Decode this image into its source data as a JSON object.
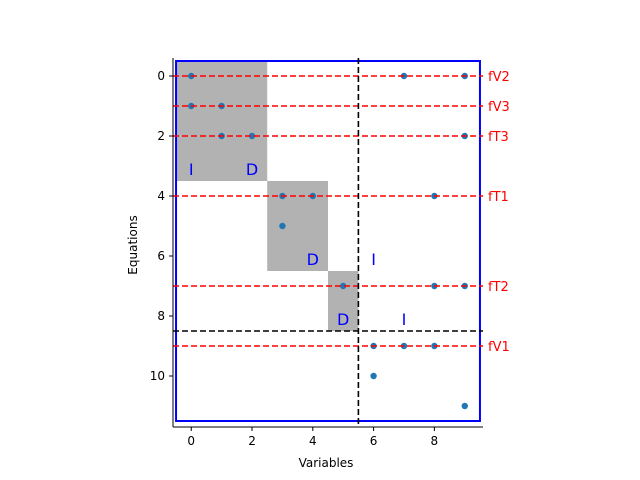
{
  "chart_data": {
    "type": "scatter",
    "xlabel": "Variables",
    "ylabel": "Equations",
    "xlim": [
      -0.6,
      9.6
    ],
    "ylim": [
      11.7,
      -0.6
    ],
    "x_ticks": [
      0,
      2,
      4,
      6,
      8
    ],
    "y_ticks": [
      0,
      2,
      4,
      6,
      8,
      10
    ],
    "grid": false,
    "marker_color": "#1f77b4",
    "points": [
      {
        "x": 0,
        "y": 0
      },
      {
        "x": 7,
        "y": 0
      },
      {
        "x": 9,
        "y": 0
      },
      {
        "x": 0,
        "y": 1
      },
      {
        "x": 1,
        "y": 1
      },
      {
        "x": 1,
        "y": 2
      },
      {
        "x": 2,
        "y": 2
      },
      {
        "x": 9,
        "y": 2
      },
      {
        "x": 3,
        "y": 4
      },
      {
        "x": 4,
        "y": 4
      },
      {
        "x": 8,
        "y": 4
      },
      {
        "x": 3,
        "y": 5
      },
      {
        "x": 5,
        "y": 7
      },
      {
        "x": 8,
        "y": 7
      },
      {
        "x": 9,
        "y": 7
      },
      {
        "x": 6,
        "y": 9
      },
      {
        "x": 7,
        "y": 9
      },
      {
        "x": 8,
        "y": 9
      },
      {
        "x": 6,
        "y": 10
      },
      {
        "x": 9,
        "y": 11
      }
    ],
    "shaded_blocks": [
      {
        "x0": -0.5,
        "x1": 2.5,
        "y0": -0.5,
        "y1": 3.5
      },
      {
        "x0": 2.5,
        "x1": 4.5,
        "y0": 3.5,
        "y1": 6.5
      },
      {
        "x0": 4.5,
        "x1": 5.5,
        "y0": 6.5,
        "y1": 8.5
      }
    ],
    "shade_color": "#b2b2b2",
    "block_labels": [
      {
        "text": "I",
        "x": 0,
        "y": 3.1
      },
      {
        "text": "D",
        "x": 2,
        "y": 3.1
      },
      {
        "text": "D",
        "x": 4,
        "y": 6.1
      },
      {
        "text": "I",
        "x": 6,
        "y": 6.1
      },
      {
        "text": "D",
        "x": 5,
        "y": 8.1
      },
      {
        "text": "I",
        "x": 7,
        "y": 8.1
      }
    ],
    "block_label_color": "#0000ff",
    "equation_lines": [
      {
        "label": "fV2",
        "y": 0
      },
      {
        "label": "fV3",
        "y": 1
      },
      {
        "label": "fT3",
        "y": 2
      },
      {
        "label": "fT1",
        "y": 4
      },
      {
        "label": "fT2",
        "y": 7
      },
      {
        "label": "fV1",
        "y": 9
      }
    ],
    "equation_line_color": "#ff0000",
    "split_lines": {
      "vertical_x": 5.5,
      "horizontal_y": 8.5,
      "color": "#000000"
    },
    "frame": {
      "x0": -0.5,
      "x1": 9.5,
      "y0": -0.5,
      "y1": 11.5,
      "color": "#0000ff"
    }
  }
}
